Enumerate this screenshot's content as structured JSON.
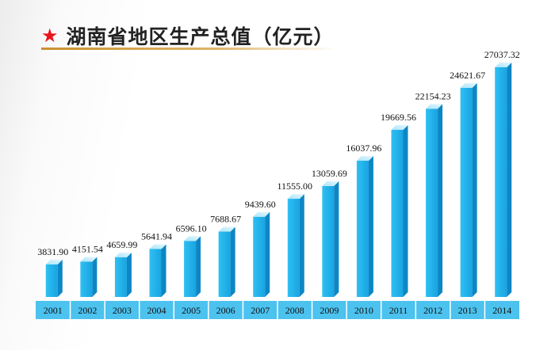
{
  "header": {
    "title": "湖南省地区生产总值（亿元）",
    "icon": "star-icon",
    "star_color": "#e8151b"
  },
  "chart_data": {
    "type": "bar",
    "title": "湖南省地区生产总值（亿元）",
    "xlabel": "",
    "ylabel": "",
    "categories": [
      "2001",
      "2002",
      "2003",
      "2004",
      "2005",
      "2006",
      "2007",
      "2008",
      "2009",
      "2010",
      "2011",
      "2012",
      "2013",
      "2014"
    ],
    "values": [
      3831.9,
      4151.54,
      4659.99,
      5641.94,
      6596.1,
      7688.67,
      9439.6,
      11555.0,
      13059.69,
      16037.96,
      19669.56,
      22154.23,
      24621.67,
      27037.32
    ],
    "value_labels": [
      "3831.90",
      "4151.54",
      "4659.99",
      "5641.94",
      "6596.10",
      "7688.67",
      "9439.60",
      "11555.00",
      "13059.69",
      "16037.96",
      "19669.56",
      "22154.23",
      "24621.67",
      "27037.32"
    ],
    "ylim": [
      0,
      27037.32
    ],
    "grid": false,
    "bar_color": "#1fb0ea",
    "axis_band_color": "#4cc2ef"
  }
}
